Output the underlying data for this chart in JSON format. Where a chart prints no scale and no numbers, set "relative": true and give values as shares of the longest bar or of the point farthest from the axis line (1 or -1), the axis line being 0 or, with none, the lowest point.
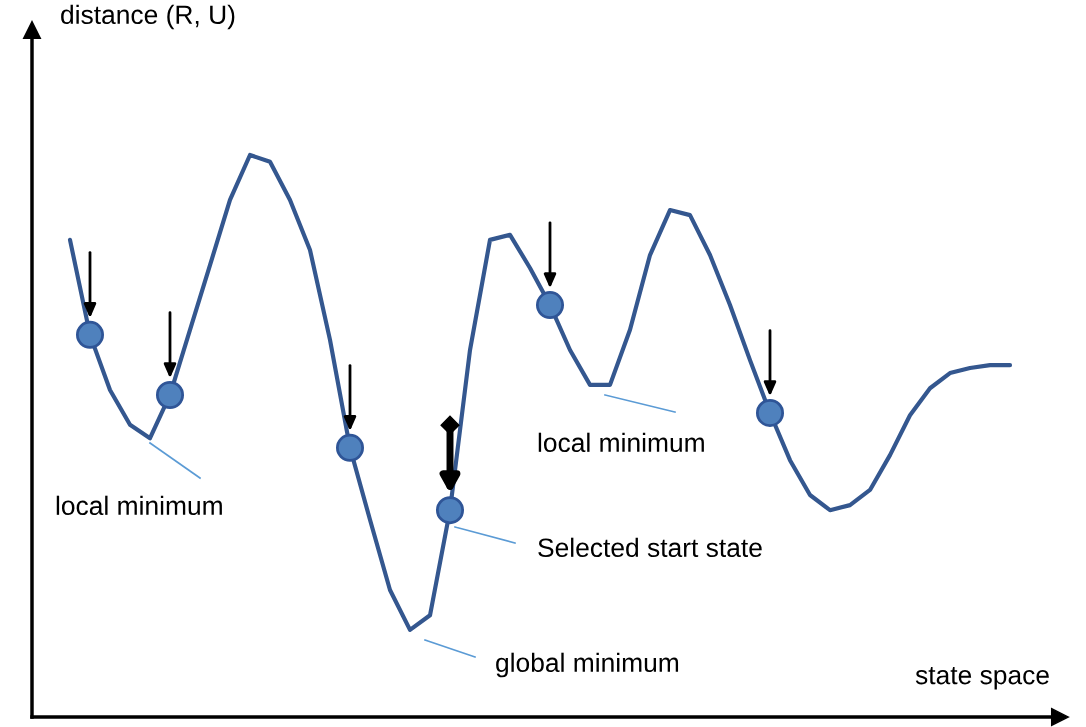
{
  "chart_data": {
    "type": "line",
    "relative": true,
    "xlabel": "state space",
    "ylabel": "distance (R, U)",
    "categories": [
      null,
      null,
      null,
      null,
      null,
      null,
      null,
      null,
      null,
      null,
      null,
      null,
      null,
      null,
      null,
      null,
      null,
      null,
      null,
      null,
      null,
      null,
      null,
      null,
      null,
      null,
      null,
      null,
      null,
      null,
      null,
      null,
      null,
      null,
      null,
      null,
      null,
      null,
      null,
      null,
      null,
      null,
      null,
      null,
      null,
      null,
      null,
      null
    ],
    "series": [
      {
        "color": "#34578f",
        "values": [
          0.849,
          0.68,
          0.582,
          0.52,
          0.496,
          0.573,
          0.689,
          0.804,
          0.92,
          1.0,
          0.988,
          0.92,
          0.831,
          0.671,
          0.479,
          0.351,
          0.226,
          0.155,
          0.181,
          0.368,
          0.653,
          0.849,
          0.858,
          0.799,
          0.733,
          0.653,
          0.591,
          0.591,
          0.689,
          0.822,
          0.902,
          0.893,
          0.822,
          0.733,
          0.635,
          0.541,
          0.457,
          0.395,
          0.368,
          0.377,
          0.404,
          0.466,
          0.537,
          0.585,
          0.612,
          0.621,
          0.626,
          0.626
        ]
      }
    ],
    "annotations": [
      "local minimum",
      "local minimum",
      "Selected start state",
      "global minimum"
    ]
  }
}
